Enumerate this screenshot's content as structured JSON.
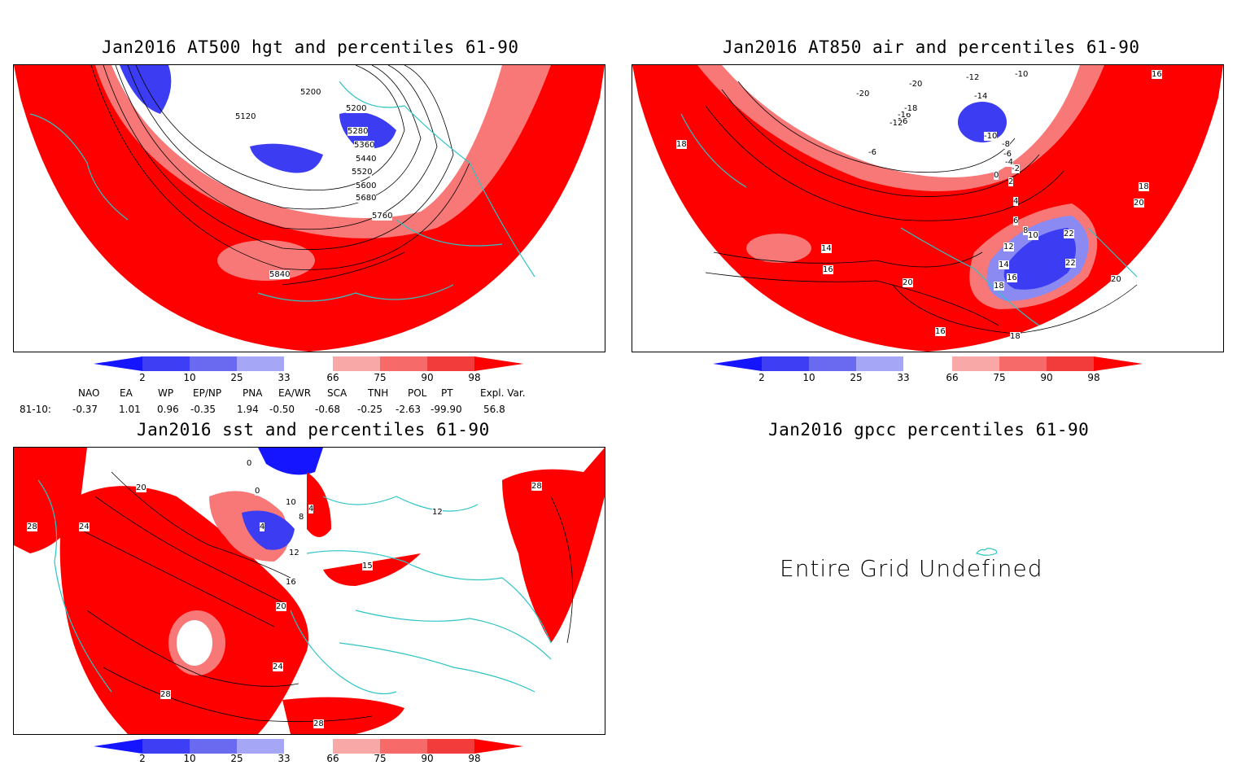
{
  "panels": {
    "p1": {
      "title": "Jan2016 AT500 hgt and percentiles 61-90",
      "contour_labels": [
        "5200",
        "5120",
        "5200",
        "5280",
        "5360",
        "5440",
        "5520",
        "5600",
        "5680",
        "5760",
        "5840"
      ]
    },
    "p2": {
      "title": "Jan2016 AT850 air and percentiles 61-90",
      "contour_labels": [
        "-12",
        "-10",
        "-20",
        "-20",
        "-14",
        "-16",
        "-18",
        "-16",
        "-12",
        "-10",
        "-6",
        "-8",
        "-6",
        "-4",
        "-2",
        "0",
        "2",
        "4",
        "6",
        "8",
        "10",
        "12",
        "14",
        "16",
        "18",
        "18",
        "20",
        "22",
        "22",
        "20",
        "16",
        "18",
        "14",
        "16",
        "18",
        "20",
        "16"
      ]
    },
    "p3": {
      "title": "Jan2016 sst and percentiles 61-90",
      "contour_labels": [
        "0",
        "20",
        "28",
        "24",
        "0",
        "10",
        "4",
        "8",
        "4",
        "12",
        "16",
        "20",
        "24",
        "28",
        "28",
        "15",
        "12",
        "28"
      ]
    },
    "p4": {
      "title": "Jan2016 gpcc percentiles 61-90",
      "message": "Entire Grid Undefined"
    }
  },
  "colorbar": {
    "labels": [
      "2",
      "10",
      "25",
      "33",
      "66",
      "75",
      "90",
      "98"
    ],
    "colors": [
      "#1515ff",
      "#3e3ef4",
      "#6a6af0",
      "#a6a6f6",
      "#ffffff",
      "#f9a8a8",
      "#f66a6a",
      "#f23c3c",
      "#ff0000"
    ]
  },
  "indices": {
    "headers": [
      "NAO",
      "EA",
      "WP",
      "EP/NP",
      "PNA",
      "EA/WR",
      "SCA",
      "TNH",
      "POL",
      "PT",
      "Expl. Var."
    ],
    "row_label": "81-10:",
    "values": [
      "-0.37",
      "1.01",
      "0.96",
      "-0.35",
      "1.94",
      "-0.50",
      "-0.68",
      "-0.25",
      "-2.63",
      "-99.90",
      "56.8"
    ]
  },
  "map_colors": {
    "red": "#ff0000",
    "light_red": "#f87878",
    "blue": "#3c3cf2",
    "light_blue": "#8a8af2",
    "coast": "#2ec4c4"
  }
}
